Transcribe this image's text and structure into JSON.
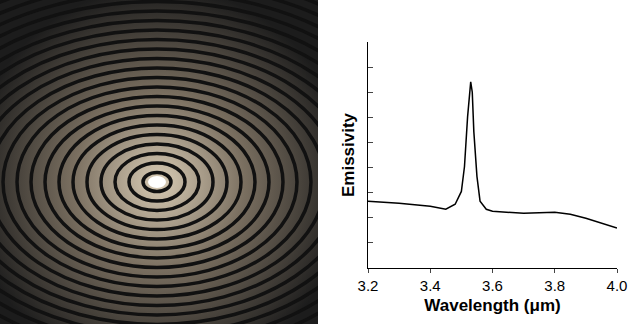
{
  "chart_data": {
    "type": "line",
    "xlabel": "Wavelength (μm)",
    "ylabel": "Emissivity",
    "x": [
      3.2,
      3.3,
      3.4,
      3.45,
      3.48,
      3.5,
      3.51,
      3.52,
      3.53,
      3.535,
      3.54,
      3.55,
      3.56,
      3.58,
      3.6,
      3.7,
      3.8,
      3.85,
      3.9,
      4.0
    ],
    "values": [
      2.66,
      2.58,
      2.46,
      2.34,
      2.54,
      3.05,
      4.04,
      6.03,
      7.41,
      7.0,
      5.43,
      3.65,
      2.66,
      2.34,
      2.26,
      2.18,
      2.22,
      2.14,
      1.98,
      1.59
    ],
    "color": "#000000",
    "xlim": [
      3.2,
      4.0
    ],
    "xticks": [
      3.2,
      3.4,
      3.6,
      3.8,
      {
        "value": 4,
        "label": "4.0"
      }
    ],
    "ylim": [
      0,
      9
    ],
    "yticks": [
      0,
      1,
      2,
      3,
      4,
      5,
      6,
      7,
      8,
      9
    ],
    "tick_labels": "x",
    "grid": false
  }
}
